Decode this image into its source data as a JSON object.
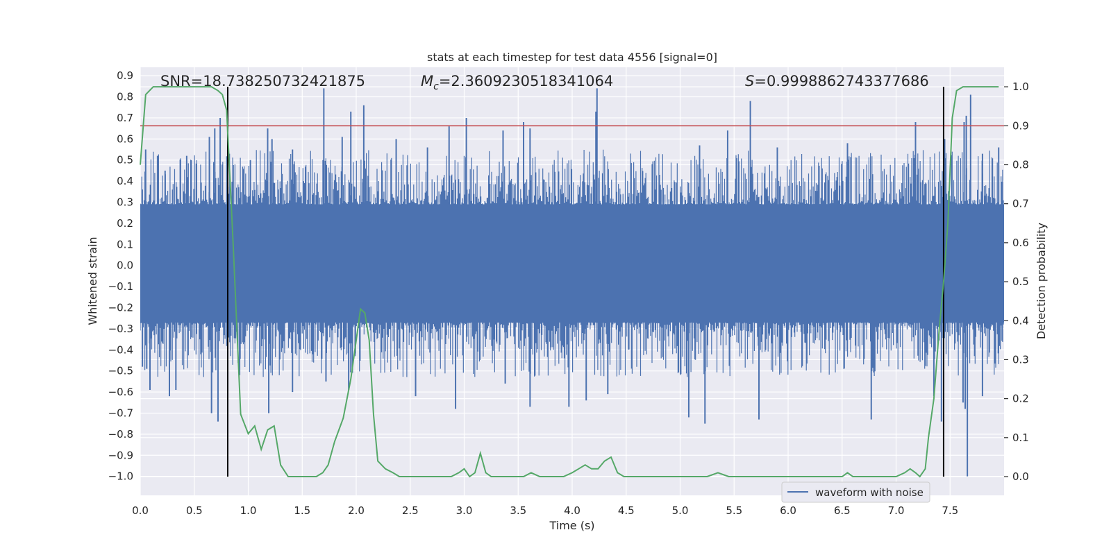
{
  "chart_data": {
    "type": "line",
    "title": "stats at each timestep for test data 4556 [signal=0]",
    "xlabel": "Time (s)",
    "ylabel_left": "Whitened strain",
    "ylabel_right": "Detection probability",
    "xlim": [
      0.0,
      8.0
    ],
    "ylim_left": [
      -1.09,
      0.94
    ],
    "ylim_right": [
      -0.048,
      1.05
    ],
    "x_ticks": [
      "0.0",
      "0.5",
      "1.0",
      "1.5",
      "2.0",
      "2.5",
      "3.0",
      "3.5",
      "4.0",
      "4.5",
      "5.0",
      "5.5",
      "6.0",
      "6.5",
      "7.0",
      "7.5"
    ],
    "y_left_ticks": [
      "0.9",
      "0.8",
      "0.7",
      "0.6",
      "0.5",
      "0.4",
      "0.3",
      "0.2",
      "0.1",
      "0.0",
      "−0.1",
      "−0.2",
      "−0.3",
      "−0.4",
      "−0.5",
      "−0.6",
      "−0.7",
      "−0.8",
      "−0.9",
      "−1.0"
    ],
    "y_right_ticks": [
      "1.0",
      "0.9",
      "0.8",
      "0.7",
      "0.6",
      "0.5",
      "0.4",
      "0.3",
      "0.2",
      "0.1",
      "0.0"
    ],
    "grid": true,
    "legend_position": "bottom-right",
    "annotations": {
      "snr": "SNR=18.738250732421875",
      "mc_symbol": "M",
      "mc_sub": "c",
      "mc_value": "=2.3609230518341064",
      "s_symbol": "S",
      "s_value": "=0.9998862743377686"
    },
    "threshold": {
      "name": "threshold",
      "y_right": 0.9,
      "color": "#c44e52"
    },
    "vlines": [
      {
        "x": 0.81,
        "y_right_from": 0.0,
        "y_right_to": 1.0,
        "color": "#000000"
      },
      {
        "x": 7.44,
        "y_right_from": 0.0,
        "y_right_to": 1.0,
        "color": "#000000"
      }
    ],
    "series": [
      {
        "name": "waveform with noise",
        "axis": "left",
        "color": "#4c72b0",
        "dense_band": [
          -0.27,
          0.29
        ],
        "duration": 8.0,
        "sample_rate": 4096,
        "upper_peaks": [
          {
            "x": 0.05,
            "y": 0.55
          },
          {
            "x": 0.16,
            "y": 0.52
          },
          {
            "x": 0.23,
            "y": 0.45
          },
          {
            "x": 0.43,
            "y": 0.52
          },
          {
            "x": 0.64,
            "y": 0.61
          },
          {
            "x": 0.69,
            "y": 0.65
          },
          {
            "x": 0.74,
            "y": 0.7
          },
          {
            "x": 1.02,
            "y": 0.5
          },
          {
            "x": 1.18,
            "y": 0.65
          },
          {
            "x": 1.22,
            "y": 0.6
          },
          {
            "x": 1.41,
            "y": 0.55
          },
          {
            "x": 1.7,
            "y": 0.84
          },
          {
            "x": 1.87,
            "y": 0.61
          },
          {
            "x": 1.95,
            "y": 0.73
          },
          {
            "x": 2.07,
            "y": 0.76
          },
          {
            "x": 2.37,
            "y": 0.6
          },
          {
            "x": 2.66,
            "y": 0.56
          },
          {
            "x": 2.86,
            "y": 0.66
          },
          {
            "x": 3.02,
            "y": 0.7
          },
          {
            "x": 3.36,
            "y": 0.64
          },
          {
            "x": 3.55,
            "y": 0.68
          },
          {
            "x": 3.61,
            "y": 0.65
          },
          {
            "x": 4.22,
            "y": 0.73
          },
          {
            "x": 4.23,
            "y": 0.84
          },
          {
            "x": 5.18,
            "y": 0.57
          },
          {
            "x": 5.44,
            "y": 0.64
          },
          {
            "x": 5.65,
            "y": 0.78
          },
          {
            "x": 5.9,
            "y": 0.56
          },
          {
            "x": 6.55,
            "y": 0.58
          },
          {
            "x": 7.18,
            "y": 0.68
          },
          {
            "x": 7.45,
            "y": 0.6
          },
          {
            "x": 7.63,
            "y": 0.68
          },
          {
            "x": 7.65,
            "y": 0.71
          },
          {
            "x": 7.69,
            "y": 0.81
          },
          {
            "x": 7.8,
            "y": 0.53
          },
          {
            "x": 7.95,
            "y": 0.56
          }
        ],
        "lower_peaks": [
          {
            "x": 0.02,
            "y": -0.48
          },
          {
            "x": 0.06,
            "y": -0.49
          },
          {
            "x": 0.09,
            "y": -0.59
          },
          {
            "x": 0.27,
            "y": -0.62
          },
          {
            "x": 0.33,
            "y": -0.59
          },
          {
            "x": 0.66,
            "y": -0.7
          },
          {
            "x": 0.72,
            "y": -0.74
          },
          {
            "x": 0.92,
            "y": -0.52
          },
          {
            "x": 1.19,
            "y": -0.7
          },
          {
            "x": 1.41,
            "y": -0.6
          },
          {
            "x": 1.72,
            "y": -0.55
          },
          {
            "x": 1.93,
            "y": -0.59
          },
          {
            "x": 2.55,
            "y": -0.62
          },
          {
            "x": 2.92,
            "y": -0.68
          },
          {
            "x": 3.38,
            "y": -0.56
          },
          {
            "x": 3.61,
            "y": -0.67
          },
          {
            "x": 3.97,
            "y": -0.67
          },
          {
            "x": 4.13,
            "y": -0.64
          },
          {
            "x": 4.33,
            "y": -0.61
          },
          {
            "x": 5.08,
            "y": -0.72
          },
          {
            "x": 5.23,
            "y": -0.75
          },
          {
            "x": 5.73,
            "y": -0.73
          },
          {
            "x": 6.77,
            "y": -0.73
          },
          {
            "x": 7.35,
            "y": -0.62
          },
          {
            "x": 7.42,
            "y": -0.74
          },
          {
            "x": 7.62,
            "y": -0.65
          },
          {
            "x": 7.64,
            "y": -0.68
          },
          {
            "x": 7.66,
            "y": -1.0
          },
          {
            "x": 7.8,
            "y": -0.62
          }
        ]
      },
      {
        "name": "detection probability",
        "axis": "right",
        "color": "#55a868",
        "x": [
          0.0,
          0.05,
          0.12,
          0.2,
          0.3,
          0.4,
          0.5,
          0.6,
          0.66,
          0.72,
          0.76,
          0.8,
          0.86,
          0.93,
          1.0,
          1.06,
          1.12,
          1.18,
          1.24,
          1.3,
          1.37,
          1.45,
          1.55,
          1.63,
          1.69,
          1.74,
          1.8,
          1.88,
          1.95,
          2.0,
          2.04,
          2.08,
          2.12,
          2.16,
          2.2,
          2.27,
          2.34,
          2.4,
          2.5,
          2.6,
          2.7,
          2.8,
          2.88,
          2.95,
          3.0,
          3.05,
          3.1,
          3.15,
          3.2,
          3.25,
          3.32,
          3.4,
          3.48,
          3.55,
          3.62,
          3.7,
          3.78,
          3.85,
          3.92,
          4.0,
          4.06,
          4.12,
          4.18,
          4.24,
          4.3,
          4.36,
          4.42,
          4.48,
          4.55,
          4.62,
          4.7,
          4.8,
          4.95,
          5.1,
          5.25,
          5.35,
          5.45,
          5.55,
          5.65,
          5.8,
          6.0,
          6.2,
          6.4,
          6.5,
          6.55,
          6.6,
          6.65,
          6.7,
          6.8,
          6.9,
          7.0,
          7.08,
          7.13,
          7.18,
          7.22,
          7.27,
          7.3,
          7.35,
          7.4,
          7.44,
          7.48,
          7.52,
          7.56,
          7.62,
          7.7,
          7.8,
          7.95
        ],
        "y": [
          0.8,
          0.98,
          1.0,
          1.0,
          1.0,
          1.0,
          1.0,
          1.0,
          1.0,
          0.99,
          0.98,
          0.94,
          0.6,
          0.16,
          0.11,
          0.13,
          0.07,
          0.12,
          0.13,
          0.03,
          0.0,
          0.0,
          0.0,
          0.0,
          0.01,
          0.03,
          0.09,
          0.15,
          0.25,
          0.35,
          0.43,
          0.42,
          0.35,
          0.16,
          0.04,
          0.02,
          0.01,
          0.0,
          0.0,
          0.0,
          0.0,
          0.0,
          0.0,
          0.01,
          0.02,
          0.0,
          0.01,
          0.06,
          0.01,
          0.0,
          0.0,
          0.0,
          0.0,
          0.0,
          0.01,
          0.0,
          0.0,
          0.0,
          0.0,
          0.01,
          0.02,
          0.03,
          0.02,
          0.02,
          0.04,
          0.05,
          0.01,
          0.0,
          0.0,
          0.0,
          0.0,
          0.0,
          0.0,
          0.0,
          0.0,
          0.01,
          0.0,
          0.0,
          0.0,
          0.0,
          0.0,
          0.0,
          0.0,
          0.0,
          0.01,
          0.0,
          0.0,
          0.0,
          0.0,
          0.0,
          0.0,
          0.01,
          0.02,
          0.01,
          0.0,
          0.02,
          0.1,
          0.2,
          0.38,
          0.5,
          0.65,
          0.92,
          0.99,
          1.0,
          1.0,
          1.0,
          1.0
        ]
      }
    ]
  },
  "legend": {
    "label": "waveform with noise"
  }
}
